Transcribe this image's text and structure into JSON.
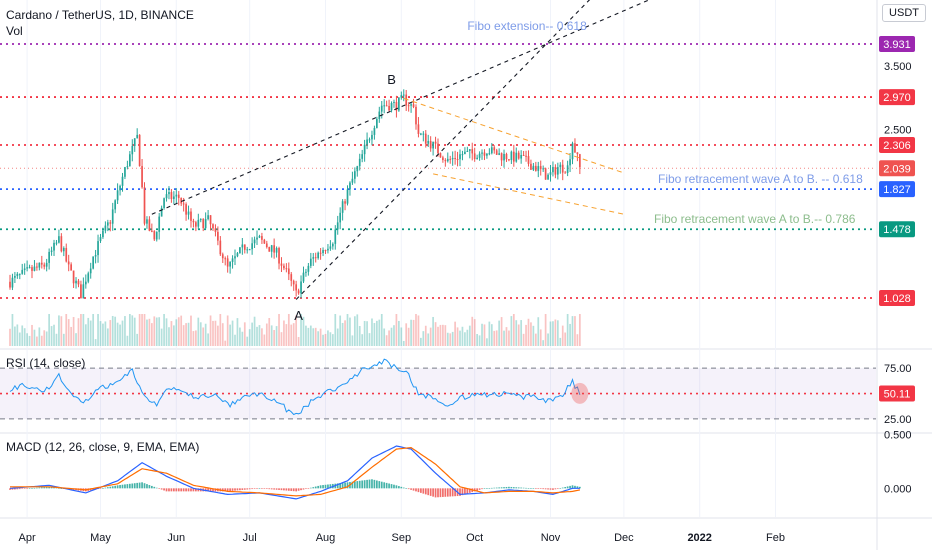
{
  "header": {
    "symbol": "Cardano / TetherUS, 1D, BINANCE",
    "volume_label": "Vol",
    "currency_button": "USDT"
  },
  "colors": {
    "up": "#26a69a",
    "down": "#ef5350",
    "rsi_line": "#2196f3",
    "macd_line": "#2962ff",
    "signal_line": "#ff6d00",
    "purple_level": "#9c27b0",
    "red_level": "#f23645",
    "blue_level": "#2962ff",
    "green_level": "#089981",
    "orange_trend": "#f7a230",
    "fibo_text_blue": "#7e9ce8",
    "fibo_text_green": "#8dbd8d"
  },
  "chart_data": {
    "type": "candlestick",
    "title": "Cardano / TetherUS, 1D, BINANCE",
    "x_ticks": [
      "Apr",
      "May",
      "Jun",
      "Jul",
      "Aug",
      "Sep",
      "Oct",
      "Nov",
      "Dec",
      "2022",
      "Feb"
    ],
    "price_scale": "log",
    "price_ticks": [
      3.5,
      2.5,
      0.5
    ],
    "price_tick_labels": [
      "3.500",
      "2.500",
      "0.500"
    ],
    "last_price": 2.039,
    "last_price_label": "2.039",
    "horizontal_levels": [
      {
        "value": 3.931,
        "label": "3.931",
        "color": "purple_level"
      },
      {
        "value": 2.97,
        "label": "2.970",
        "color": "red_level"
      },
      {
        "value": 2.306,
        "label": "2.306",
        "color": "red_level"
      },
      {
        "value": 1.827,
        "label": "1.827",
        "color": "blue_level"
      },
      {
        "value": 1.478,
        "label": "1.478",
        "color": "green_level"
      },
      {
        "value": 1.028,
        "label": "1.028",
        "color": "red_level"
      }
    ],
    "annotations": [
      {
        "text": "Fibo extension-- 0.618",
        "color": "fibo_text_blue"
      },
      {
        "text": "Fibo retracement wave A to B.  -- 0.618",
        "color": "fibo_text_blue"
      },
      {
        "text": "Fibo retracement wave A to B.-- 0.786",
        "color": "fibo_text_green"
      },
      {
        "text": "A",
        "color": "#131722"
      },
      {
        "text": "B",
        "color": "#131722"
      }
    ],
    "price_path": [
      [
        "2021-03-25",
        1.12
      ],
      [
        "2021-04-01",
        1.18
      ],
      [
        "2021-04-08",
        1.22
      ],
      [
        "2021-04-14",
        1.4
      ],
      [
        "2021-04-18",
        1.2
      ],
      [
        "2021-04-23",
        1.05
      ],
      [
        "2021-04-28",
        1.28
      ],
      [
        "2021-05-05",
        1.55
      ],
      [
        "2021-05-12",
        2.1
      ],
      [
        "2021-05-16",
        2.4
      ],
      [
        "2021-05-19",
        1.55
      ],
      [
        "2021-05-23",
        1.4
      ],
      [
        "2021-05-27",
        1.75
      ],
      [
        "2021-06-02",
        1.75
      ],
      [
        "2021-06-08",
        1.5
      ],
      [
        "2021-06-14",
        1.55
      ],
      [
        "2021-06-22",
        1.2
      ],
      [
        "2021-06-29",
        1.35
      ],
      [
        "2021-07-05",
        1.4
      ],
      [
        "2021-07-12",
        1.3
      ],
      [
        "2021-07-20",
        1.05
      ],
      [
        "2021-07-26",
        1.25
      ],
      [
        "2021-08-04",
        1.4
      ],
      [
        "2021-08-10",
        1.8
      ],
      [
        "2021-08-15",
        2.1
      ],
      [
        "2021-08-20",
        2.5
      ],
      [
        "2021-08-24",
        2.85
      ],
      [
        "2021-08-30",
        2.85
      ],
      [
        "2021-09-02",
        2.95
      ],
      [
        "2021-09-06",
        2.8
      ],
      [
        "2021-09-08",
        2.45
      ],
      [
        "2021-09-14",
        2.3
      ],
      [
        "2021-09-20",
        2.12
      ],
      [
        "2021-09-26",
        2.2
      ],
      [
        "2021-10-01",
        2.2
      ],
      [
        "2021-10-06",
        2.25
      ],
      [
        "2021-10-12",
        2.18
      ],
      [
        "2021-10-20",
        2.15
      ],
      [
        "2021-10-26",
        2.05
      ],
      [
        "2021-10-31",
        1.95
      ],
      [
        "2021-11-04",
        2.05
      ],
      [
        "2021-11-08",
        2.05
      ],
      [
        "2021-11-10",
        2.35
      ],
      [
        "2021-11-13",
        2.039
      ]
    ],
    "rsi": {
      "label": "RSI (14, close)",
      "value_label": "50.11",
      "levels": [
        75,
        50,
        25
      ],
      "level_labels": [
        "75.00",
        "25.00"
      ],
      "ylim": [
        20,
        85
      ],
      "path": [
        [
          "2021-03-25",
          55
        ],
        [
          "2021-04-01",
          58
        ],
        [
          "2021-04-08",
          52
        ],
        [
          "2021-04-14",
          68
        ],
        [
          "2021-04-20",
          45
        ],
        [
          "2021-04-25",
          42
        ],
        [
          "2021-05-01",
          55
        ],
        [
          "2021-05-08",
          60
        ],
        [
          "2021-05-14",
          72
        ],
        [
          "2021-05-19",
          48
        ],
        [
          "2021-05-24",
          40
        ],
        [
          "2021-05-29",
          55
        ],
        [
          "2021-06-04",
          52
        ],
        [
          "2021-06-10",
          45
        ],
        [
          "2021-06-16",
          50
        ],
        [
          "2021-06-22",
          38
        ],
        [
          "2021-06-29",
          47
        ],
        [
          "2021-07-06",
          50
        ],
        [
          "2021-07-13",
          40
        ],
        [
          "2021-07-20",
          28
        ],
        [
          "2021-07-27",
          45
        ],
        [
          "2021-08-03",
          52
        ],
        [
          "2021-08-10",
          62
        ],
        [
          "2021-08-15",
          72
        ],
        [
          "2021-08-20",
          78
        ],
        [
          "2021-08-25",
          82
        ],
        [
          "2021-08-30",
          75
        ],
        [
          "2021-09-03",
          72
        ],
        [
          "2021-09-08",
          50
        ],
        [
          "2021-09-14",
          45
        ],
        [
          "2021-09-20",
          40
        ],
        [
          "2021-09-26",
          46
        ],
        [
          "2021-10-02",
          50
        ],
        [
          "2021-10-08",
          48
        ],
        [
          "2021-10-14",
          50
        ],
        [
          "2021-10-20",
          46
        ],
        [
          "2021-10-26",
          47
        ],
        [
          "2021-10-31",
          42
        ],
        [
          "2021-11-06",
          50
        ],
        [
          "2021-11-10",
          62
        ],
        [
          "2021-11-13",
          50.11
        ]
      ]
    },
    "macd": {
      "label": "MACD (12, 26, close, 9, EMA, EMA)",
      "zero_label": "0.000",
      "ylim": [
        -0.15,
        0.32
      ],
      "macd_path": [
        [
          "2021-03-25",
          0.0
        ],
        [
          "2021-04-10",
          0.02
        ],
        [
          "2021-04-25",
          -0.03
        ],
        [
          "2021-05-08",
          0.05
        ],
        [
          "2021-05-18",
          0.17
        ],
        [
          "2021-05-28",
          0.08
        ],
        [
          "2021-06-08",
          0.0
        ],
        [
          "2021-06-22",
          -0.04
        ],
        [
          "2021-07-05",
          -0.03
        ],
        [
          "2021-07-20",
          -0.07
        ],
        [
          "2021-07-30",
          -0.02
        ],
        [
          "2021-08-10",
          0.05
        ],
        [
          "2021-08-20",
          0.2
        ],
        [
          "2021-08-30",
          0.28
        ],
        [
          "2021-09-05",
          0.26
        ],
        [
          "2021-09-15",
          0.1
        ],
        [
          "2021-09-25",
          -0.04
        ],
        [
          "2021-10-05",
          -0.03
        ],
        [
          "2021-10-15",
          -0.01
        ],
        [
          "2021-10-25",
          -0.02
        ],
        [
          "2021-11-02",
          -0.04
        ],
        [
          "2021-11-10",
          0.0
        ],
        [
          "2021-11-13",
          0.0
        ]
      ],
      "signal_path": [
        [
          "2021-03-25",
          0.01
        ],
        [
          "2021-04-10",
          0.01
        ],
        [
          "2021-04-25",
          -0.01
        ],
        [
          "2021-05-08",
          0.03
        ],
        [
          "2021-05-18",
          0.13
        ],
        [
          "2021-05-28",
          0.1
        ],
        [
          "2021-06-08",
          0.02
        ],
        [
          "2021-06-22",
          -0.02
        ],
        [
          "2021-07-05",
          -0.03
        ],
        [
          "2021-07-20",
          -0.05
        ],
        [
          "2021-07-30",
          -0.04
        ],
        [
          "2021-08-10",
          0.01
        ],
        [
          "2021-08-20",
          0.14
        ],
        [
          "2021-08-30",
          0.26
        ],
        [
          "2021-09-05",
          0.27
        ],
        [
          "2021-09-15",
          0.16
        ],
        [
          "2021-09-25",
          0.01
        ],
        [
          "2021-10-05",
          -0.03
        ],
        [
          "2021-10-15",
          -0.02
        ],
        [
          "2021-10-25",
          -0.02
        ],
        [
          "2021-11-02",
          -0.03
        ],
        [
          "2021-11-10",
          -0.02
        ],
        [
          "2021-11-13",
          -0.01
        ]
      ]
    }
  }
}
